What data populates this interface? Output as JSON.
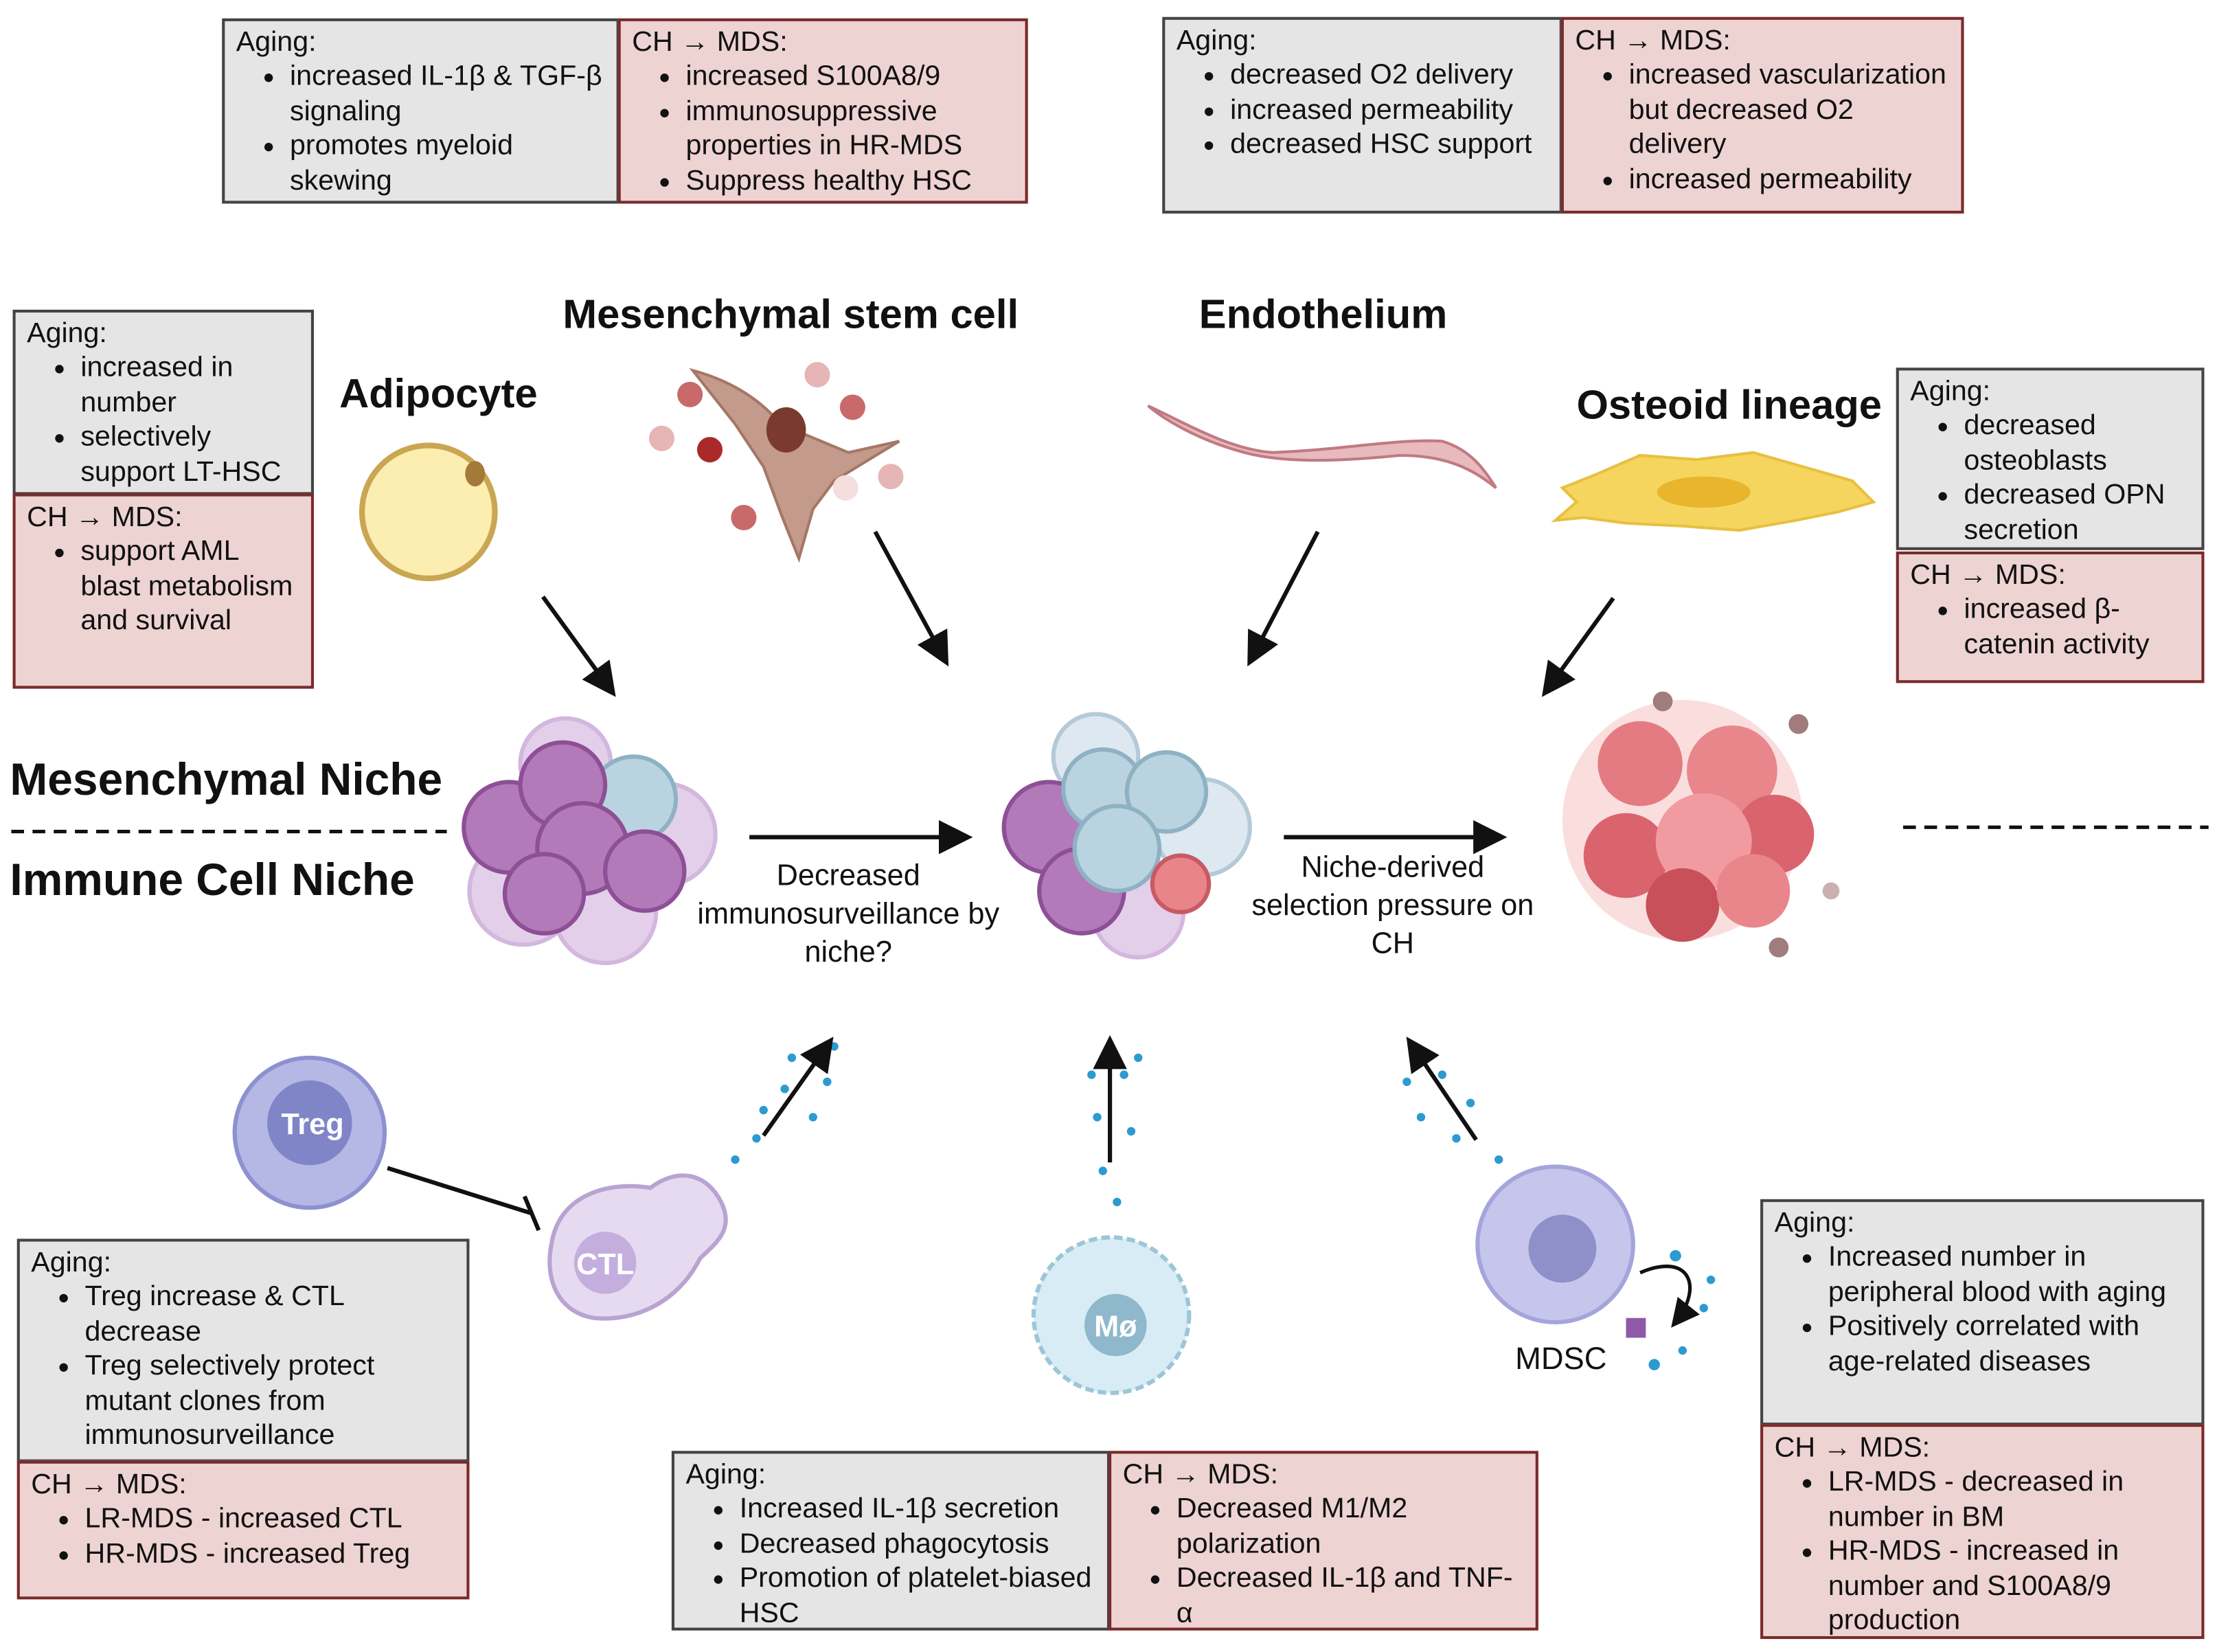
{
  "titles": {
    "msc": "Mesenchymal stem cell",
    "endothelium": "Endothelium",
    "adipocyte": "Adipocyte",
    "osteoid": "Osteoid lineage",
    "mesenchymal_niche": "Mesenchymal Niche",
    "immune_niche": "Immune Cell Niche"
  },
  "center": {
    "left": "Decreased immunosurveillance by niche?",
    "right": "Niche-derived selection pressure on CH"
  },
  "cells": {
    "treg": "Treg",
    "ctl": "CTL",
    "macrophage": "Mø",
    "mdsc": "MDSC"
  },
  "colors": {
    "aging_bg": "#e5e5e5",
    "ch_bg": "#eed3d3",
    "ch_border": "#7a2a2a"
  },
  "boxes": {
    "msc_aging": {
      "title": "Aging:",
      "items": [
        "increased IL-1β & TGF-β signaling",
        "promotes myeloid skewing"
      ]
    },
    "msc_ch": {
      "title": "CH → MDS:",
      "items": [
        "increased S100A8/9",
        "immunosuppressive properties in HR-MDS",
        "Suppress healthy HSC"
      ]
    },
    "endo_aging": {
      "title": "Aging:",
      "items": [
        "decreased O2 delivery",
        "increased permeability",
        "decreased HSC support"
      ]
    },
    "endo_ch": {
      "title": "CH → MDS:",
      "items": [
        "increased vascularization but decreased O2 delivery",
        "increased permeability"
      ]
    },
    "adipo_aging": {
      "title": "Aging:",
      "items": [
        "increased in number",
        "selectively support LT-HSC"
      ]
    },
    "adipo_ch": {
      "title": "CH → MDS:",
      "items": [
        "support AML blast metabolism and survival"
      ]
    },
    "osteo_aging": {
      "title": "Aging:",
      "items": [
        "decreased osteoblasts",
        "decreased OPN secretion"
      ]
    },
    "osteo_ch": {
      "title": "CH → MDS:",
      "items": [
        "increased β-catenin activity"
      ]
    },
    "treg_aging": {
      "title": "Aging:",
      "items": [
        "Treg increase & CTL decrease",
        "Treg selectively protect mutant clones from immunosurveillance"
      ]
    },
    "treg_ch": {
      "title": "CH → MDS:",
      "items": [
        "LR-MDS - increased  CTL",
        "HR-MDS - increased Treg"
      ]
    },
    "mac_aging": {
      "title": "Aging:",
      "items": [
        "Increased IL-1β secretion",
        "Decreased phagocytosis",
        "Promotion of platelet-biased HSC"
      ]
    },
    "mac_ch": {
      "title": "CH → MDS:",
      "items": [
        "Decreased M1/M2 polarization",
        "Decreased IL-1β and TNF-α"
      ]
    },
    "mdsc_aging": {
      "title": "Aging:",
      "items": [
        "Increased number in peripheral blood with aging",
        "Positively correlated with age-related diseases"
      ]
    },
    "mdsc_ch": {
      "title": "CH → MDS:",
      "items": [
        "LR-MDS - decreased in number in BM",
        "HR-MDS - increased in number and S100A8/9 production"
      ]
    }
  }
}
